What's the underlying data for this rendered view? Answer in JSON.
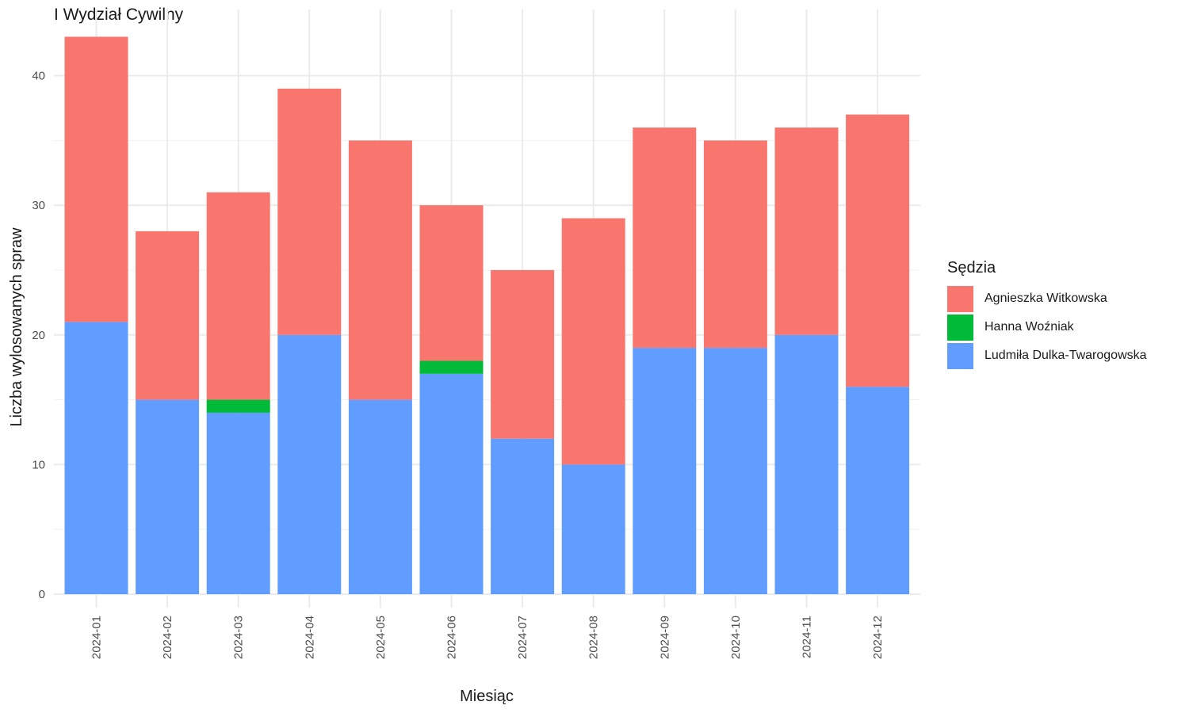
{
  "chart_data": {
    "type": "bar",
    "stacked": true,
    "title": "I Wydział Cywilny",
    "xlabel": "Miesiąc",
    "ylabel": "Liczba wylosowanych spraw",
    "ylim": [
      0,
      44
    ],
    "yticks": [
      0,
      10,
      20,
      30,
      40
    ],
    "grid": true,
    "legend_title": "Sędzia",
    "legend_position": "right",
    "categories": [
      "2024-01",
      "2024-02",
      "2024-03",
      "2024-04",
      "2024-05",
      "2024-06",
      "2024-07",
      "2024-08",
      "2024-09",
      "2024-10",
      "2024-11",
      "2024-12"
    ],
    "series": [
      {
        "name": "Ludmiła Dulka-Twarogowska",
        "color": "#619CFF",
        "values": [
          21,
          15,
          14,
          20,
          15,
          17,
          12,
          10,
          19,
          19,
          20,
          16
        ]
      },
      {
        "name": "Hanna Woźniak",
        "color": "#00BA38",
        "values": [
          0,
          0,
          1,
          0,
          0,
          1,
          0,
          0,
          0,
          0,
          0,
          0
        ]
      },
      {
        "name": "Agnieszka Witkowska",
        "color": "#F8766D",
        "values": [
          22,
          13,
          16,
          19,
          20,
          12,
          13,
          19,
          17,
          16,
          16,
          21
        ]
      }
    ],
    "legend_order": [
      "Agnieszka Witkowska",
      "Hanna Woźniak",
      "Ludmiła Dulka-Twarogowska"
    ]
  }
}
